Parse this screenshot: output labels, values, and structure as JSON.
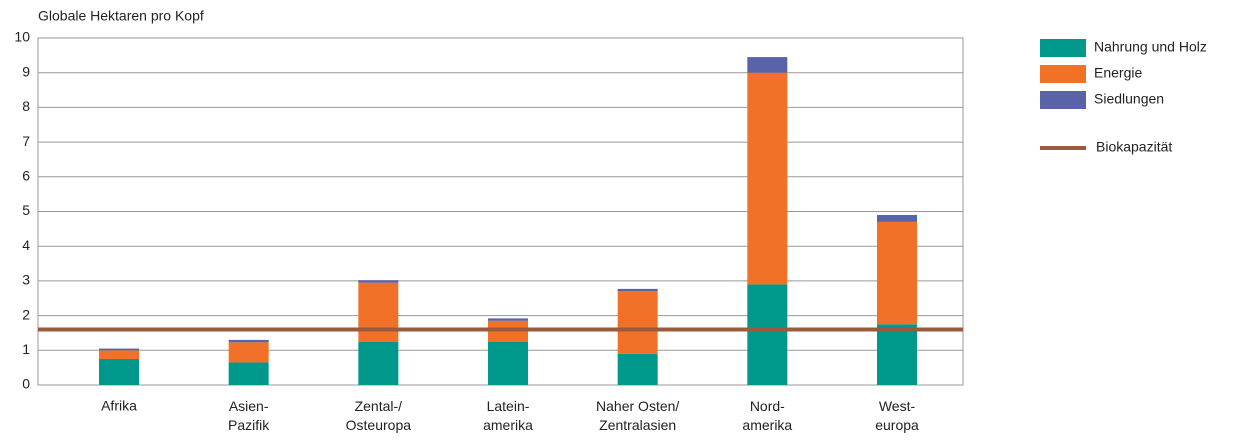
{
  "chart_data": {
    "type": "bar",
    "stacked": true,
    "y_label": "Globale Hektaren pro Kopf",
    "categories": [
      "Afrika",
      "Asien-\nPazifik",
      "Zental-/\nOsteuropa",
      "Latein-\namerika",
      "Naher Osten/\nZentralasien",
      "Nord-\namerika",
      "West-\neuropa"
    ],
    "series": [
      {
        "name": "Nahrung und Holz",
        "color": "#00988a",
        "values": [
          0.75,
          0.65,
          1.25,
          1.25,
          0.9,
          2.9,
          1.75
        ]
      },
      {
        "name": "Energie",
        "color": "#f07127",
        "values": [
          0.25,
          0.58,
          1.7,
          0.6,
          1.8,
          6.1,
          2.95
        ]
      },
      {
        "name": "Siedlungen",
        "color": "#5a62a8",
        "values": [
          0.05,
          0.07,
          0.07,
          0.07,
          0.07,
          0.45,
          0.2
        ]
      }
    ],
    "reference_line": {
      "name": "Biokapazität",
      "value": 1.6,
      "color": "#9b5a3c"
    },
    "ylim": [
      0,
      10
    ],
    "yticks": [
      0,
      1,
      2,
      3,
      4,
      5,
      6,
      7,
      8,
      9,
      10
    ],
    "grid": true,
    "legend": "right"
  }
}
